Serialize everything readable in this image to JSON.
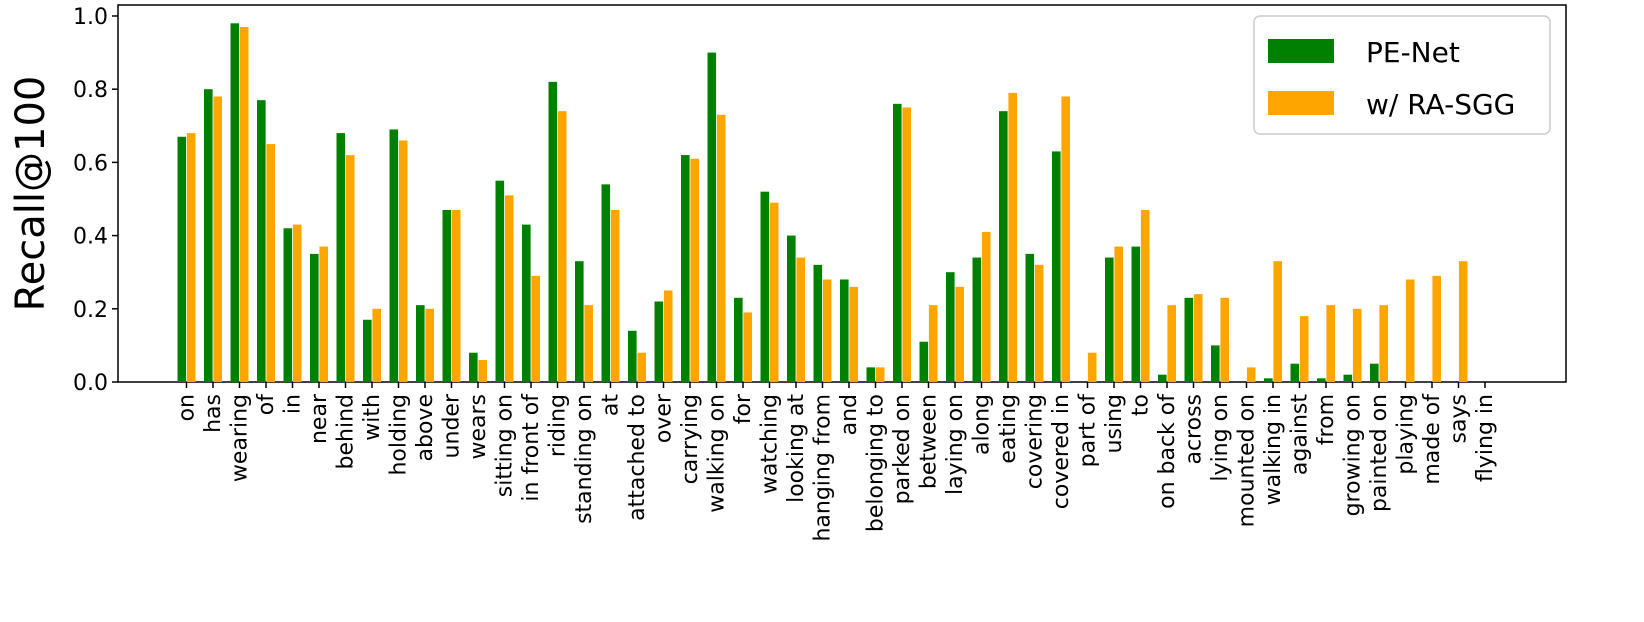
{
  "chart_data": {
    "type": "bar",
    "ylabel": "Recall@100",
    "xlabel": "",
    "ylim": [
      0,
      1.03
    ],
    "yticks": [
      "0.0",
      "0.2",
      "0.4",
      "0.6",
      "0.8",
      "1.0"
    ],
    "legend_position": "top-right",
    "categories": [
      "on",
      "has",
      "wearing",
      "of",
      "in",
      "near",
      "behind",
      "with",
      "holding",
      "above",
      "under",
      "wears",
      "sitting on",
      "in front of",
      "riding",
      "standing on",
      "at",
      "attached to",
      "over",
      "carrying",
      "walking on",
      "for",
      "watching",
      "looking at",
      "hanging from",
      "and",
      "belonging to",
      "parked on",
      "between",
      "laying on",
      "along",
      "eating",
      "covering",
      "covered in",
      "part of",
      "using",
      "to",
      "on back of",
      "across",
      "lying on",
      "mounted on",
      "walking in",
      "against",
      "from",
      "growing on",
      "painted on",
      "playing",
      "made of",
      "says",
      "flying in"
    ],
    "series": [
      {
        "name": "PE-Net",
        "color": "#008000",
        "values": [
          0.67,
          0.8,
          0.98,
          0.77,
          0.42,
          0.35,
          0.68,
          0.17,
          0.69,
          0.21,
          0.47,
          0.08,
          0.55,
          0.43,
          0.82,
          0.33,
          0.54,
          0.14,
          0.22,
          0.62,
          0.9,
          0.23,
          0.52,
          0.4,
          0.32,
          0.28,
          0.04,
          0.76,
          0.11,
          0.3,
          0.34,
          0.74,
          0.35,
          0.63,
          0.0,
          0.34,
          0.37,
          0.02,
          0.23,
          0.1,
          0.0,
          0.01,
          0.05,
          0.01,
          0.02,
          0.05,
          0.0,
          0.0,
          0.0,
          0.0
        ]
      },
      {
        "name": "w/ RA-SGG",
        "color": "#ffa500",
        "values": [
          0.68,
          0.78,
          0.97,
          0.65,
          0.43,
          0.37,
          0.62,
          0.2,
          0.66,
          0.2,
          0.47,
          0.06,
          0.51,
          0.29,
          0.74,
          0.21,
          0.47,
          0.08,
          0.25,
          0.61,
          0.73,
          0.19,
          0.49,
          0.34,
          0.28,
          0.26,
          0.04,
          0.75,
          0.21,
          0.26,
          0.41,
          0.79,
          0.32,
          0.78,
          0.08,
          0.37,
          0.47,
          0.21,
          0.24,
          0.23,
          0.04,
          0.33,
          0.18,
          0.21,
          0.2,
          0.21,
          0.28,
          0.29,
          0.33,
          0.0
        ]
      }
    ]
  }
}
